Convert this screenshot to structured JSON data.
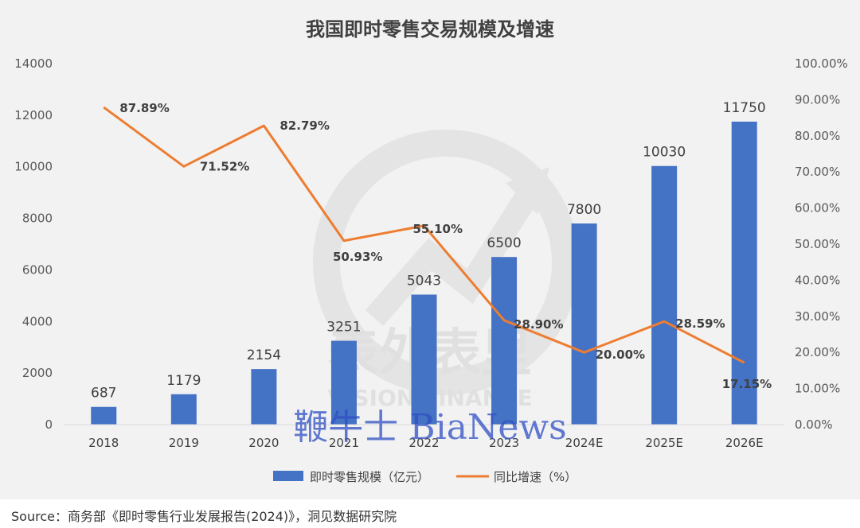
{
  "chart_data": {
    "type": "bar",
    "title": "我国即时零售交易规模及增速",
    "categories": [
      "2018",
      "2019",
      "2020",
      "2021",
      "2022",
      "2023",
      "2024E",
      "2025E",
      "2026E"
    ],
    "series": [
      {
        "name": "即时零售规模（亿元）",
        "type": "bar",
        "axis": "left",
        "color": "#4472c4",
        "values": [
          687,
          1179,
          2154,
          3251,
          5043,
          6500,
          7800,
          10030,
          11750
        ],
        "labels": [
          "687",
          "1179",
          "2154",
          "3251",
          "5043",
          "6500",
          "7800",
          "10030",
          "11750"
        ]
      },
      {
        "name": "同比增速（%）",
        "type": "line",
        "axis": "right",
        "color": "#ed7d31",
        "values": [
          87.89,
          71.52,
          82.79,
          50.93,
          55.1,
          28.9,
          20.0,
          28.59,
          17.15
        ],
        "labels": [
          "87.89%",
          "71.52%",
          "82.79%",
          "50.93%",
          "55.10%",
          "28.90%",
          "20.00%",
          "28.59%",
          "17.15%"
        ]
      }
    ],
    "y_left": {
      "ylim": [
        0,
        14000
      ],
      "ticks": [
        "0",
        "2000",
        "4000",
        "6000",
        "8000",
        "10000",
        "12000",
        "14000"
      ]
    },
    "y_right": {
      "ylim": [
        0,
        100
      ],
      "ticks": [
        "0.00%",
        "10.00%",
        "20.00%",
        "30.00%",
        "40.00%",
        "50.00%",
        "60.00%",
        "70.00%",
        "80.00%",
        "90.00%",
        "100.00%"
      ]
    },
    "legend": "bottom",
    "grid": false
  },
  "watermarks": {
    "vision_cn": "表外表里",
    "vision_en": "VISION FINANCE",
    "bianews": "鞭牛士 BiaNews"
  },
  "source_note": "Source：商务部《即时零售行业发展报告(2024)》，洞见数据研究院"
}
